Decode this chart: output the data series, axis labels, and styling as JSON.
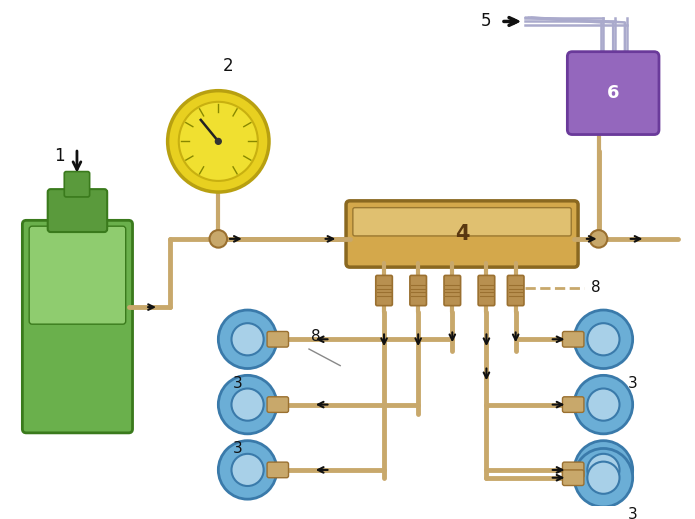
{
  "bg_color": "#ffffff",
  "pipe_color": "#C8A86B",
  "pipe_lw": 3.5,
  "arrow_color": "#111111",
  "pump_green": "#6ab04c",
  "pump_green_light": "#8fcc6f",
  "pump_green_dark": "#3a7a1c",
  "manometer_yellow": "#e8d840",
  "manometer_border": "#b8a020",
  "dist_color": "#C8A86B",
  "dist_border": "#9a7830",
  "bearing_fill": "#6baed6",
  "bearing_inner": "#a8d0e8",
  "bearing_border": "#3a7aaa",
  "elec_fill": "#9467bd",
  "elec_border": "#6a3a9a",
  "wire_color": "#aaaacc",
  "label_fs": 11,
  "label_color": "#111111"
}
